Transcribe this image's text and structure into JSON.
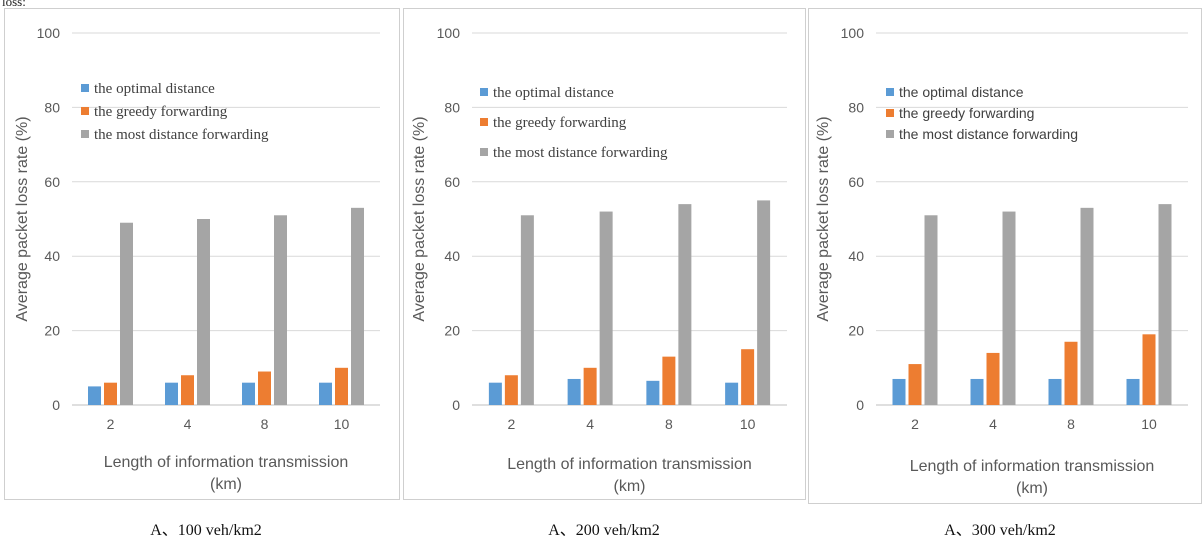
{
  "top_fragment": "loss:",
  "legend_colors": {
    "optimal": "#5b9bd5",
    "greedy": "#ed7d31",
    "most": "#a5a5a5"
  },
  "chart_data": [
    {
      "type": "bar",
      "categories": [
        "2",
        "4",
        "8",
        "10"
      ],
      "series": [
        {
          "name": "the optimal distance",
          "values": [
            5,
            6,
            6,
            6
          ]
        },
        {
          "name": "the greedy forwarding",
          "values": [
            6,
            8,
            9,
            10
          ]
        },
        {
          "name": "the most distance forwarding",
          "values": [
            49,
            50,
            51,
            53
          ]
        }
      ],
      "ylabel": "Average packet loss rate (%)",
      "xlabel_line1": "Length of information transmission",
      "xlabel_line2": "(km)",
      "ylim": [
        0,
        100
      ],
      "yticks": [
        "0",
        "20",
        "40",
        "60",
        "80",
        "100"
      ],
      "legend_position": "upper-left",
      "grid": true,
      "caption": "A、100 veh/km2"
    },
    {
      "type": "bar",
      "categories": [
        "2",
        "4",
        "8",
        "10"
      ],
      "series": [
        {
          "name": "the optimal distance",
          "values": [
            6,
            7,
            6.5,
            6
          ]
        },
        {
          "name": "the greedy forwarding",
          "values": [
            8,
            10,
            13,
            15
          ]
        },
        {
          "name": "the most distance forwarding",
          "values": [
            51,
            52,
            54,
            55
          ]
        }
      ],
      "ylabel": "Average packet loss rate (%)",
      "xlabel_line1": "Length of information transmission",
      "xlabel_line2": "(km)",
      "ylim": [
        0,
        100
      ],
      "yticks": [
        "0",
        "20",
        "40",
        "60",
        "80",
        "100"
      ],
      "legend_position": "upper-left",
      "grid": true,
      "caption": "A、200 veh/km2"
    },
    {
      "type": "bar",
      "categories": [
        "2",
        "4",
        "8",
        "10"
      ],
      "series": [
        {
          "name": "the optimal distance",
          "values": [
            7,
            7,
            7,
            7
          ]
        },
        {
          "name": "the greedy forwarding",
          "values": [
            11,
            14,
            17,
            19
          ]
        },
        {
          "name": "the most distance forwarding",
          "values": [
            51,
            52,
            53,
            54
          ]
        }
      ],
      "ylabel": "Average packet loss rate (%)",
      "xlabel_line1": "Length of information transmission",
      "xlabel_line2": "(km)",
      "ylim": [
        0,
        100
      ],
      "yticks": [
        "0",
        "20",
        "40",
        "60",
        "80",
        "100"
      ],
      "legend_position": "upper-left",
      "grid": true,
      "caption": "A、300 veh/km2"
    }
  ]
}
